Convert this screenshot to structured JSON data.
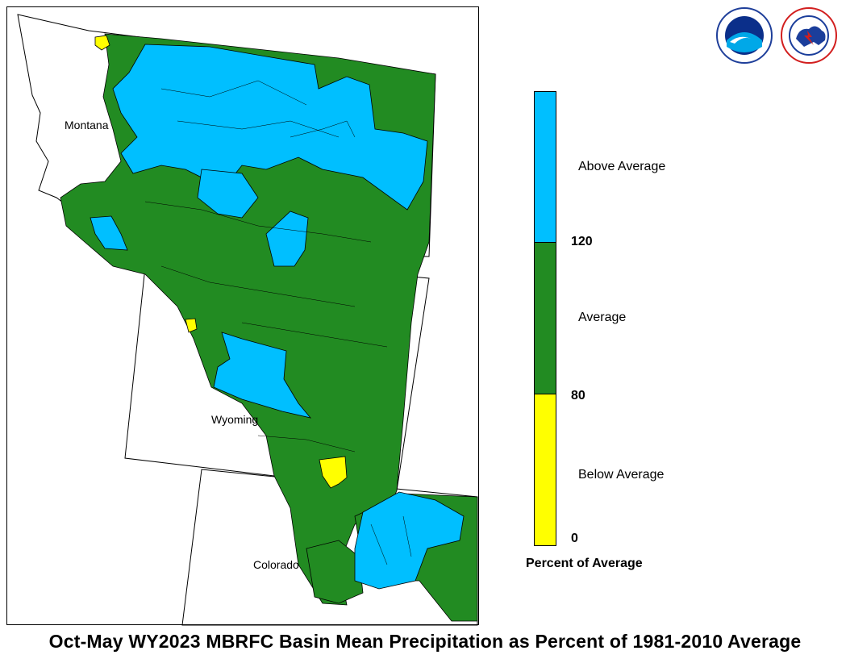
{
  "map": {
    "states": [
      "Montana",
      "Wyoming",
      "Colorado"
    ]
  },
  "legend": {
    "title": "Percent of Average",
    "categories": [
      {
        "label": "Above Average",
        "color": "#00bfff"
      },
      {
        "label": "Average",
        "color": "#228b22"
      },
      {
        "label": "Below Average",
        "color": "#ffff00"
      }
    ],
    "breaks": [
      "120",
      "80",
      "0"
    ]
  },
  "title": "Oct-May WY2023 MBRFC Basin Mean Precipitation as Percent of 1981-2010 Average",
  "logos": [
    "noaa-logo",
    "national-weather-service-logo"
  ],
  "colors": {
    "above": "#00bfff",
    "average": "#228b22",
    "below": "#ffff00",
    "outline": "#000000"
  }
}
